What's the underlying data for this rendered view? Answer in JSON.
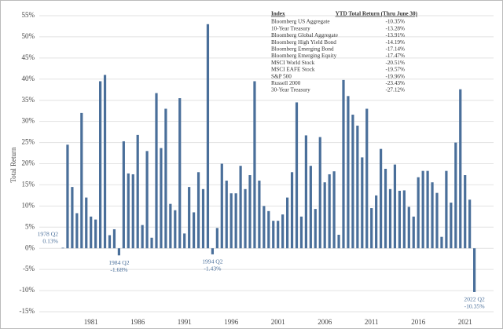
{
  "chart_data": {
    "type": "bar",
    "y_axis_label": "Total Return",
    "color": "#4a6f9a",
    "grid": true,
    "ylim": [
      -15,
      55
    ],
    "yticks": [
      {
        "value": -15,
        "label": "-15%"
      },
      {
        "value": -10,
        "label": "-10%"
      },
      {
        "value": -5,
        "label": "-5%"
      },
      {
        "value": 0,
        "label": "0%"
      },
      {
        "value": 5,
        "label": "5%"
      },
      {
        "value": 10,
        "label": "10%"
      },
      {
        "value": 15,
        "label": "15%"
      },
      {
        "value": 20,
        "label": "20%"
      },
      {
        "value": 25,
        "label": "25%"
      },
      {
        "value": 30,
        "label": "30%"
      },
      {
        "value": 35,
        "label": "35%"
      },
      {
        "value": 40,
        "label": "40%"
      },
      {
        "value": 45,
        "label": "45%"
      },
      {
        "value": 50,
        "label": "50%"
      },
      {
        "value": 55,
        "label": "55%"
      }
    ],
    "categories": [
      null,
      null,
      null,
      null,
      null,
      null,
      "1981",
      null,
      null,
      null,
      null,
      null,
      null,
      null,
      null,
      null,
      "1986",
      null,
      null,
      null,
      null,
      null,
      null,
      null,
      null,
      null,
      "1991",
      null,
      null,
      null,
      null,
      null,
      null,
      null,
      null,
      null,
      "1996",
      null,
      null,
      null,
      null,
      null,
      null,
      null,
      null,
      null,
      "2001",
      null,
      null,
      null,
      null,
      null,
      null,
      null,
      null,
      null,
      "2006",
      null,
      null,
      null,
      null,
      null,
      null,
      null,
      null,
      null,
      "2011",
      null,
      null,
      null,
      null,
      null,
      null,
      null,
      null,
      null,
      "2016",
      null,
      null,
      null,
      null,
      null,
      null,
      null,
      null,
      null,
      "2021",
      null,
      null
    ],
    "values": [
      0.13,
      24.5,
      14.5,
      8.3,
      32,
      12,
      7.5,
      6.8,
      39.5,
      41,
      3.1,
      4.5,
      -1.68,
      25.3,
      17.7,
      17.5,
      26.8,
      5.5,
      23,
      2.5,
      36.7,
      23.7,
      33,
      10.5,
      9,
      35.5,
      3.5,
      14.5,
      8.5,
      18,
      14,
      53,
      -1.43,
      4.8,
      20,
      16,
      13,
      13,
      19.5,
      14,
      17.3,
      39.5,
      16,
      10,
      8.8,
      6.5,
      6.5,
      8,
      12,
      18,
      34.5,
      7.5,
      26.7,
      19.5,
      9.3,
      26.3,
      15.6,
      17.5,
      18.2,
      3.2,
      39.8,
      36,
      31.6,
      29,
      21.5,
      33,
      9.5,
      12.5,
      23.5,
      18.8,
      14,
      19.8,
      13.6,
      13.7,
      9.8,
      7.5,
      16.8,
      18.3,
      18.3,
      15.6,
      13.1,
      2.7,
      18.3,
      10.8,
      25,
      37.6,
      17.3,
      11.5,
      -10.35
    ],
    "bar_labels": [
      "1978 Q2",
      null,
      null,
      null,
      null,
      null,
      null,
      null,
      null,
      null,
      null,
      null,
      "1984 Q2",
      null,
      null,
      null,
      null,
      null,
      null,
      null,
      null,
      null,
      null,
      null,
      null,
      null,
      null,
      null,
      null,
      null,
      null,
      null,
      "1994 Q2",
      null,
      null,
      null,
      null,
      null,
      null,
      null,
      null,
      null,
      null,
      null,
      null,
      null,
      null,
      null,
      null,
      null,
      null,
      null,
      null,
      null,
      null,
      null,
      null,
      null,
      null,
      null,
      null,
      null,
      null,
      null,
      null,
      null,
      null,
      null,
      null,
      null,
      null,
      null,
      null,
      null,
      null,
      null,
      null,
      null,
      null,
      null,
      null,
      null,
      null,
      null,
      null,
      null,
      null,
      null,
      "2022 Q2"
    ],
    "value_labels": [
      "0.13%",
      null,
      null,
      null,
      null,
      null,
      null,
      null,
      null,
      null,
      null,
      null,
      "-1.68%",
      null,
      null,
      null,
      null,
      null,
      null,
      null,
      null,
      null,
      null,
      null,
      null,
      null,
      null,
      null,
      null,
      null,
      null,
      null,
      "-1.43%",
      null,
      null,
      null,
      null,
      null,
      null,
      null,
      null,
      null,
      null,
      null,
      null,
      null,
      null,
      null,
      null,
      null,
      null,
      null,
      null,
      null,
      null,
      null,
      null,
      null,
      null,
      null,
      null,
      null,
      null,
      null,
      null,
      null,
      null,
      null,
      null,
      null,
      null,
      null,
      null,
      null,
      null,
      null,
      null,
      null,
      null,
      null,
      null,
      null,
      null,
      null,
      null,
      null,
      null,
      null,
      "-10.35%"
    ],
    "table": {
      "columns": [
        "Index",
        "YTD Total Return (Thru June 30)"
      ],
      "rows": [
        [
          "Bloomberg US Aggregate",
          "-10.35%"
        ],
        [
          "10-Year Treasury",
          "-13.28%"
        ],
        [
          "Bloomberg Global Aggregate",
          "-13.91%"
        ],
        [
          "Bloomberg High Yield Bond",
          "-14.19%"
        ],
        [
          "Bloomberg Emerging Bond",
          "-17.14%"
        ],
        [
          "Bloomberg Emerging Equity",
          "-17.47%"
        ],
        [
          "MSCI World Stock",
          "-20.51%"
        ],
        [
          "MSCI EAFE Stock",
          "-19.57%"
        ],
        [
          "S&P 500",
          "-19.96%"
        ],
        [
          "Russell 2000",
          "-23.43%"
        ],
        [
          "30-Year Treasury",
          "-27.12%"
        ]
      ]
    }
  }
}
